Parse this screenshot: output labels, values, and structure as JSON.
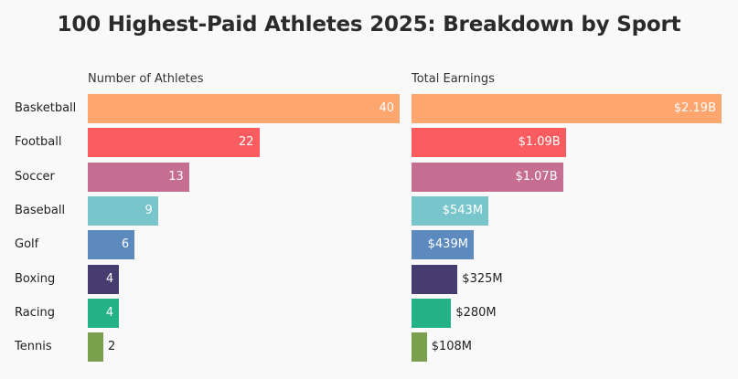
{
  "chart_data": {
    "type": "bar",
    "orientation": "horizontal",
    "title": "100 Highest-Paid Athletes 2025: Breakdown by Sport",
    "categories": [
      "Basketball",
      "Football",
      "Soccer",
      "Baseball",
      "Golf",
      "Boxing",
      "Racing",
      "Tennis"
    ],
    "colors": [
      "#ffa56e",
      "#fb5c5f",
      "#c66d92",
      "#79c5cc",
      "#5c8abf",
      "#473c6f",
      "#23b186",
      "#78a04d"
    ],
    "series": [
      {
        "name": "Number of Athletes",
        "values": [
          40,
          22,
          13,
          9,
          6,
          4,
          4,
          2
        ],
        "labels": [
          "40",
          "22",
          "13",
          "9",
          "6",
          "4",
          "4",
          "2"
        ],
        "xlim": [
          0,
          40
        ]
      },
      {
        "name": "Total Earnings",
        "values": [
          2190,
          1090,
          1070,
          543,
          439,
          325,
          280,
          108
        ],
        "unit": "$M",
        "labels": [
          "$2.19B",
          "$1.09B",
          "$1.07B",
          "$543M",
          "$439M",
          "$325M",
          "$280M",
          "$108M"
        ],
        "xlim": [
          0,
          2190
        ]
      }
    ]
  }
}
